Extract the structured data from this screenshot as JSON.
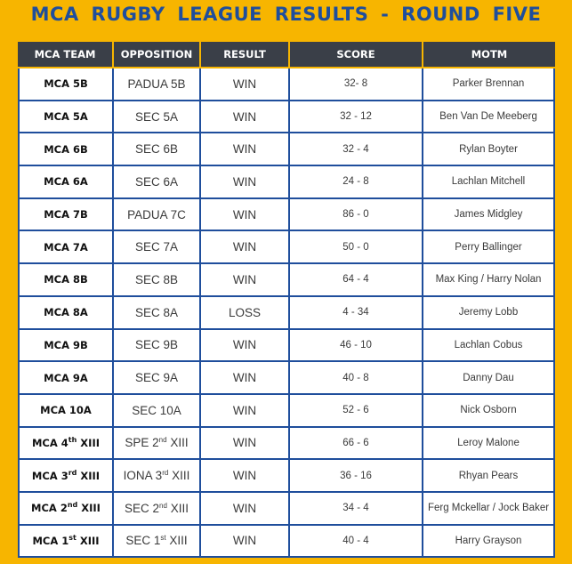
{
  "title": "MCA  RUGBY  LEAGUE  RESULTS - ROUND  FIVE",
  "headers": {
    "team": "MCA TEAM",
    "opposition": "OPPOSITION",
    "result": "RESULT",
    "score": "SCORE",
    "motm": "MOTM"
  },
  "rows": [
    {
      "team": "MCA 5B",
      "opposition": "PADUA 5B",
      "result": "WIN",
      "score": "32- 8",
      "motm": "Parker Brennan"
    },
    {
      "team": "MCA 5A",
      "opposition": "SEC 5A",
      "result": "WIN",
      "score": "32 - 12",
      "motm": "Ben Van De Meeberg"
    },
    {
      "team": "MCA 6B",
      "opposition": "SEC 6B",
      "result": "WIN",
      "score": "32 - 4",
      "motm": "Rylan Boyter"
    },
    {
      "team": "MCA 6A",
      "opposition": "SEC 6A",
      "result": "WIN",
      "score": "24 - 8",
      "motm": "Lachlan Mitchell"
    },
    {
      "team": "MCA 7B",
      "opposition": "PADUA 7C",
      "result": "WIN",
      "score": "86 - 0",
      "motm": "James Midgley"
    },
    {
      "team": "MCA 7A",
      "opposition": "SEC 7A",
      "result": "WIN",
      "score": "50 - 0",
      "motm": "Perry Ballinger"
    },
    {
      "team": "MCA 8B",
      "opposition": "SEC 8B",
      "result": "WIN",
      "score": "64 - 4",
      "motm": "Max King / Harry Nolan"
    },
    {
      "team": "MCA 8A",
      "opposition": "SEC 8A",
      "result": "LOSS",
      "score": "4 - 34",
      "motm": "Jeremy Lobb"
    },
    {
      "team": "MCA 9B",
      "opposition": "SEC 9B",
      "result": "WIN",
      "score": "46 - 10",
      "motm": "Lachlan Cobus"
    },
    {
      "team": "MCA 9A",
      "opposition": "SEC 9A",
      "result": "WIN",
      "score": "40 - 8",
      "motm": "Danny Dau"
    },
    {
      "team": "MCA 10A",
      "opposition": "SEC 10A",
      "result": "WIN",
      "score": "52 - 6",
      "motm": "Nick Osborn"
    },
    {
      "team_pre": "MCA 4",
      "team_sup": "th",
      "team_post": " XIII",
      "opp_pre": "SPE 2",
      "opp_sup": "nd",
      "opp_post": " XIII",
      "result": "WIN",
      "score": "66 - 6",
      "motm": "Leroy Malone"
    },
    {
      "team_pre": "MCA 3",
      "team_sup": "rd",
      "team_post": " XIII",
      "opp_pre": "IONA 3",
      "opp_sup": "rd",
      "opp_post": " XIII",
      "result": "WIN",
      "score": "36 - 16",
      "motm": "Rhyan Pears"
    },
    {
      "team_pre": "MCA 2",
      "team_sup": "nd",
      "team_post": " XIII",
      "opp_pre": "SEC 2",
      "opp_sup": "nd",
      "opp_post": " XIII",
      "result": "WIN",
      "score": "34 - 4",
      "motm": "Ferg Mckellar / Jock Baker"
    },
    {
      "team_pre": "MCA 1",
      "team_sup": "st",
      "team_post": " XIII",
      "opp_pre": "SEC 1",
      "opp_sup": "st",
      "opp_post": " XIII",
      "result": "WIN",
      "score": "40 - 4",
      "motm": "Harry Grayson"
    }
  ]
}
